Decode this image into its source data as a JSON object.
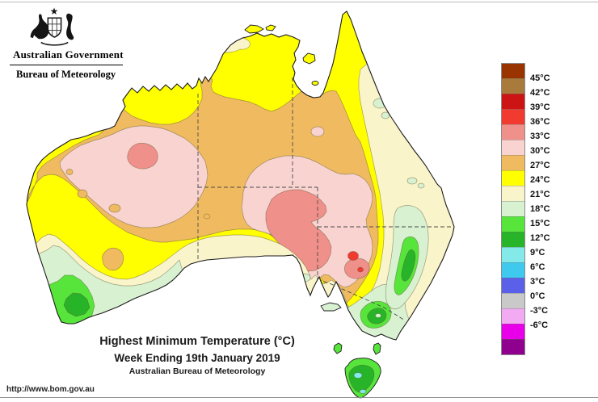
{
  "header": {
    "government": "Australian Government",
    "bureau": "Bureau of Meteorology"
  },
  "caption": {
    "title": "Highest Minimum Temperature (°C)",
    "period": "Week Ending 19th January 2019",
    "source": "Australian Bureau of Meteorology"
  },
  "footer": {
    "url": "http://www.bom.gov.au"
  },
  "legend": {
    "entries": [
      {
        "color": "#993300",
        "label": "45°C",
        "textured": false
      },
      {
        "color": "#A87B3C",
        "label": "42°C",
        "textured": true
      },
      {
        "color": "#CC1414",
        "label": "39°C",
        "textured": false
      },
      {
        "color": "#F23B30",
        "label": "36°C",
        "textured": false
      },
      {
        "color": "#F0908A",
        "label": "33°C",
        "textured": false
      },
      {
        "color": "#F8D3D0",
        "label": "30°C",
        "textured": false
      },
      {
        "color": "#F0BB60",
        "label": "27°C",
        "textured": false
      },
      {
        "color": "#FFFF00",
        "label": "24°C",
        "textured": false
      },
      {
        "color": "#FAF4CB",
        "label": "21°C",
        "textured": false
      },
      {
        "color": "#D8F1D1",
        "label": "18°C",
        "textured": false
      },
      {
        "color": "#57E53C",
        "label": "15°C",
        "textured": false
      },
      {
        "color": "#28B428",
        "label": "12°C",
        "textured": false
      },
      {
        "color": "#84E9E9",
        "label": "9°C",
        "textured": false
      },
      {
        "color": "#3FC9EF",
        "label": "6°C",
        "textured": false
      },
      {
        "color": "#5B60E8",
        "label": "3°C",
        "textured": false
      },
      {
        "color": "#C9C9C9",
        "label": "0°C",
        "textured": false
      },
      {
        "color": "#F2AAF2",
        "label": "-3°C",
        "textured": false
      },
      {
        "color": "#E800E8",
        "label": "-6°C",
        "textured": false
      },
      {
        "color": "#8F008F",
        "label": "",
        "textured": false
      }
    ]
  },
  "map_bands": {
    "45+": "#993300",
    "42-45": "#A87B3C",
    "39-42": "#CC1414",
    "36-39": "#F23B30",
    "33-36": "#F0908A",
    "30-33": "#F8D3D0",
    "27-30": "#F0BB60",
    "24-27": "#FFFF00",
    "21-24": "#FAF4CB",
    "18-21": "#D8F1D1",
    "15-18": "#57E53C",
    "12-15": "#28B428",
    "9-12": "#84E9E9",
    "6-9": "#3FC9EF",
    "3-6": "#5B60E8",
    "0-3": "#C9C9C9",
    "-3-0": "#F2AAF2",
    "-6--3": "#E800E8",
    "<-6": "#8F008F"
  }
}
